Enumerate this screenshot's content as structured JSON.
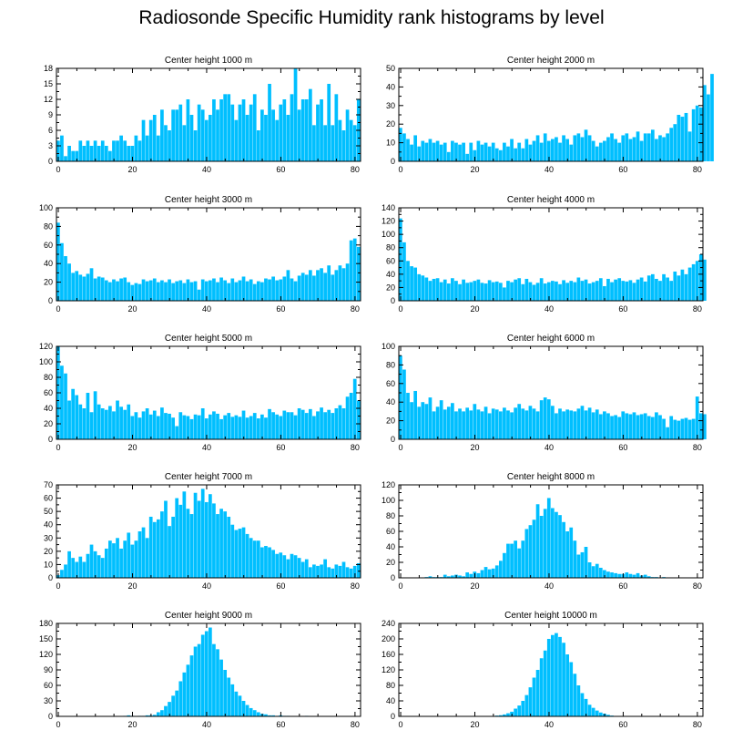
{
  "title": "Radiosonde Specific Humidity rank histograms by level",
  "bar_color": "#00bfff",
  "chart_data": [
    {
      "type": "bar",
      "title": "Center height 1000 m",
      "x_ticks": [
        0,
        20,
        40,
        60,
        80
      ],
      "y_ticks": [
        0,
        3,
        6,
        9,
        12,
        15,
        18
      ],
      "ylim": [
        0,
        18
      ],
      "xlim": [
        -0.5,
        81.5
      ],
      "values": [
        4,
        5,
        1,
        3,
        2,
        2,
        4,
        3,
        4,
        3,
        4,
        3,
        4,
        3,
        2,
        4,
        4,
        5,
        4,
        3,
        3,
        5,
        4,
        8,
        5,
        8,
        9,
        5,
        10,
        7,
        6,
        10,
        10,
        11,
        7,
        12,
        9,
        6,
        11,
        10,
        8,
        9,
        12,
        10,
        12,
        13,
        13,
        11,
        8,
        11,
        12,
        9,
        11,
        13,
        6,
        10,
        9,
        15,
        10,
        8,
        11,
        12,
        9,
        13,
        18,
        10,
        12,
        12,
        14,
        7,
        11,
        12,
        7,
        15,
        7,
        13,
        8,
        6,
        10,
        8,
        7,
        12
      ]
    },
    {
      "type": "bar",
      "title": "Center height 2000 m",
      "x_ticks": [
        0,
        20,
        40,
        60,
        80
      ],
      "y_ticks": [
        0,
        10,
        20,
        30,
        40,
        50
      ],
      "ylim": [
        0,
        50
      ],
      "xlim": [
        -0.5,
        81.5
      ],
      "values": [
        18,
        15,
        12,
        9,
        14,
        8,
        11,
        10,
        12,
        10,
        11,
        9,
        10,
        5,
        11,
        10,
        9,
        10,
        4,
        10,
        6,
        11,
        9,
        10,
        8,
        10,
        7,
        6,
        10,
        8,
        12,
        7,
        10,
        7,
        12,
        9,
        11,
        14,
        10,
        15,
        11,
        12,
        13,
        10,
        14,
        12,
        9,
        14,
        15,
        13,
        17,
        14,
        11,
        8,
        10,
        11,
        13,
        15,
        12,
        10,
        14,
        15,
        12,
        13,
        16,
        11,
        15,
        15,
        17,
        12,
        14,
        13,
        15,
        18,
        20,
        25,
        24,
        26,
        16,
        28,
        30,
        29,
        41,
        36,
        47
      ]
    },
    {
      "type": "bar",
      "title": "Center height 3000 m",
      "x_ticks": [
        0,
        20,
        40,
        60,
        80
      ],
      "y_ticks": [
        0,
        20,
        40,
        60,
        80,
        100
      ],
      "ylim": [
        0,
        100
      ],
      "xlim": [
        -0.5,
        81.5
      ],
      "values": [
        84,
        62,
        48,
        40,
        30,
        32,
        28,
        26,
        29,
        35,
        24,
        26,
        25,
        22,
        20,
        23,
        21,
        24,
        25,
        20,
        17,
        19,
        18,
        23,
        21,
        22,
        24,
        20,
        22,
        20,
        23,
        19,
        21,
        22,
        19,
        23,
        20,
        21,
        12,
        23,
        21,
        22,
        24,
        20,
        25,
        22,
        19,
        24,
        20,
        22,
        26,
        21,
        23,
        18,
        21,
        20,
        24,
        23,
        26,
        22,
        23,
        26,
        33,
        24,
        21,
        27,
        30,
        28,
        33,
        27,
        33,
        35,
        30,
        38,
        28,
        33,
        38,
        35,
        40,
        65,
        67,
        58
      ]
    },
    {
      "type": "bar",
      "title": "Center height 4000 m",
      "x_ticks": [
        0,
        20,
        40,
        60,
        80
      ],
      "y_ticks": [
        0,
        20,
        40,
        60,
        80,
        100,
        120,
        140
      ],
      "ylim": [
        0,
        140
      ],
      "xlim": [
        -0.5,
        81.5
      ],
      "values": [
        124,
        88,
        60,
        52,
        50,
        40,
        38,
        35,
        30,
        33,
        34,
        28,
        32,
        26,
        34,
        30,
        25,
        32,
        27,
        28,
        30,
        32,
        27,
        26,
        31,
        28,
        29,
        27,
        20,
        30,
        28,
        32,
        34,
        25,
        33,
        28,
        24,
        27,
        34,
        26,
        28,
        30,
        29,
        25,
        31,
        27,
        30,
        28,
        35,
        30,
        32,
        26,
        28,
        30,
        34,
        22,
        33,
        28,
        32,
        34,
        30,
        29,
        31,
        27,
        32,
        35,
        29,
        38,
        40,
        33,
        30,
        40,
        35,
        30,
        44,
        38,
        47,
        40,
        50,
        55,
        60,
        70,
        62
      ]
    },
    {
      "type": "bar",
      "title": "Center height 5000 m",
      "x_ticks": [
        0,
        20,
        40,
        60,
        80
      ],
      "y_ticks": [
        0,
        20,
        40,
        60,
        80,
        100,
        120
      ],
      "ylim": [
        0,
        120
      ],
      "xlim": [
        -0.5,
        81.5
      ],
      "values": [
        120,
        95,
        85,
        50,
        65,
        57,
        45,
        40,
        60,
        35,
        62,
        45,
        40,
        38,
        43,
        36,
        50,
        42,
        38,
        45,
        30,
        35,
        28,
        36,
        40,
        32,
        37,
        30,
        41,
        34,
        33,
        28,
        17,
        35,
        31,
        30,
        26,
        32,
        31,
        40,
        27,
        32,
        36,
        33,
        26,
        31,
        34,
        29,
        31,
        29,
        37,
        28,
        30,
        34,
        27,
        32,
        28,
        39,
        35,
        32,
        30,
        37,
        35,
        35,
        31,
        40,
        38,
        34,
        39,
        30,
        36,
        41,
        35,
        38,
        34,
        40,
        44,
        40,
        55,
        60,
        78,
        50
      ]
    },
    {
      "type": "bar",
      "title": "Center height 6000 m",
      "x_ticks": [
        0,
        20,
        40,
        60,
        80
      ],
      "y_ticks": [
        0,
        20,
        40,
        60,
        80,
        100
      ],
      "ylim": [
        0,
        100
      ],
      "xlim": [
        -0.5,
        81.5
      ],
      "values": [
        90,
        75,
        50,
        40,
        52,
        35,
        40,
        38,
        45,
        30,
        35,
        42,
        32,
        35,
        39,
        30,
        33,
        30,
        34,
        31,
        38,
        32,
        30,
        35,
        28,
        33,
        32,
        30,
        34,
        31,
        29,
        34,
        38,
        33,
        31,
        36,
        33,
        30,
        42,
        45,
        43,
        36,
        28,
        33,
        30,
        32,
        31,
        30,
        33,
        36,
        31,
        34,
        29,
        32,
        27,
        30,
        28,
        25,
        26,
        24,
        30,
        28,
        27,
        29,
        26,
        27,
        28,
        25,
        24,
        29,
        26,
        22,
        13,
        25,
        21,
        20,
        22,
        23,
        21,
        22,
        46,
        28,
        27
      ]
    },
    {
      "type": "bar",
      "title": "Center height 7000 m",
      "x_ticks": [
        0,
        20,
        40,
        60,
        80
      ],
      "y_ticks": [
        0,
        10,
        20,
        30,
        40,
        50,
        60,
        70
      ],
      "ylim": [
        0,
        70
      ],
      "xlim": [
        -0.5,
        81.5
      ],
      "values": [
        2,
        6,
        10,
        20,
        15,
        12,
        16,
        12,
        18,
        25,
        20,
        17,
        15,
        22,
        28,
        26,
        30,
        22,
        28,
        34,
        25,
        28,
        35,
        38,
        30,
        46,
        42,
        44,
        50,
        58,
        39,
        46,
        60,
        55,
        65,
        52,
        48,
        64,
        58,
        67,
        57,
        63,
        56,
        48,
        52,
        50,
        46,
        40,
        36,
        37,
        38,
        33,
        30,
        28,
        28,
        23,
        24,
        23,
        21,
        18,
        19,
        17,
        14,
        18,
        17,
        15,
        12,
        14,
        8,
        10,
        9,
        10,
        14,
        8,
        7,
        10,
        9,
        12,
        8,
        7,
        9,
        11
      ]
    },
    {
      "type": "bar",
      "title": "Center height 8000 m",
      "x_ticks": [
        0,
        20,
        40,
        60,
        80
      ],
      "y_ticks": [
        0,
        20,
        40,
        60,
        80,
        100,
        120
      ],
      "ylim": [
        0,
        120
      ],
      "xlim": [
        -0.5,
        81.5
      ],
      "values": [
        0,
        0,
        0,
        0,
        0,
        0,
        0,
        1,
        2,
        1,
        1,
        1,
        4,
        2,
        3,
        4,
        3,
        2,
        7,
        5,
        8,
        6,
        10,
        14,
        11,
        12,
        16,
        22,
        32,
        44,
        44,
        48,
        38,
        48,
        63,
        68,
        75,
        95,
        80,
        89,
        103,
        90,
        85,
        81,
        72,
        60,
        65,
        48,
        30,
        33,
        40,
        20,
        15,
        18,
        13,
        10,
        8,
        7,
        6,
        5,
        5,
        7,
        5,
        4,
        6,
        3,
        4,
        2,
        1,
        1,
        0,
        1,
        0,
        0,
        0,
        0,
        0,
        0,
        0,
        0,
        0,
        0
      ]
    },
    {
      "type": "bar",
      "title": "Center height 9000 m",
      "x_ticks": [
        0,
        20,
        40,
        60,
        80
      ],
      "y_ticks": [
        0,
        30,
        60,
        90,
        120,
        150,
        180
      ],
      "ylim": [
        0,
        180
      ],
      "xlim": [
        -0.5,
        81.5
      ],
      "values": [
        0,
        0,
        0,
        0,
        0,
        0,
        0,
        0,
        0,
        0,
        0,
        0,
        0,
        0,
        0,
        0,
        0,
        0,
        1,
        2,
        1,
        0,
        1,
        1,
        2,
        2,
        3,
        8,
        12,
        20,
        28,
        40,
        50,
        68,
        85,
        100,
        118,
        135,
        140,
        158,
        165,
        172,
        140,
        130,
        110,
        90,
        75,
        62,
        48,
        40,
        30,
        22,
        16,
        12,
        8,
        5,
        4,
        2,
        2,
        1,
        2,
        1,
        1,
        0,
        0,
        0,
        0,
        1,
        0,
        0,
        0,
        0,
        0,
        0,
        0,
        0,
        0,
        0,
        0,
        0,
        0,
        0
      ]
    },
    {
      "type": "bar",
      "title": "Center height 10000 m",
      "x_ticks": [
        0,
        20,
        40,
        60,
        80
      ],
      "y_ticks": [
        0,
        40,
        80,
        120,
        160,
        200,
        240
      ],
      "ylim": [
        0,
        240
      ],
      "xlim": [
        -0.5,
        81.5
      ],
      "values": [
        0,
        0,
        0,
        0,
        0,
        0,
        0,
        0,
        0,
        0,
        0,
        0,
        0,
        0,
        0,
        0,
        0,
        0,
        0,
        0,
        0,
        0,
        0,
        0,
        1,
        1,
        2,
        3,
        5,
        8,
        12,
        20,
        28,
        40,
        55,
        75,
        100,
        120,
        150,
        170,
        200,
        210,
        215,
        205,
        190,
        160,
        140,
        110,
        80,
        60,
        45,
        30,
        22,
        15,
        10,
        7,
        4,
        2,
        1,
        1,
        0,
        0,
        0,
        0,
        0,
        0,
        0,
        0,
        0,
        0,
        0,
        0,
        0,
        0,
        0,
        0,
        0,
        0,
        0,
        0,
        0,
        0
      ]
    }
  ]
}
